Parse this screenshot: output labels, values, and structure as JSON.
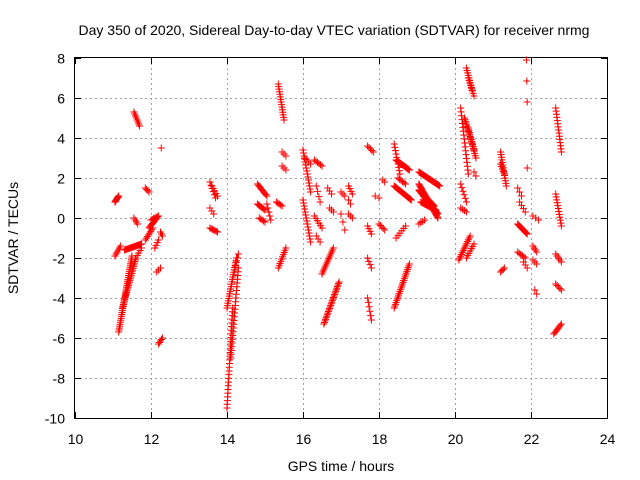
{
  "chart_data": {
    "type": "scatter",
    "title": "Day 350 of 2020, Sidereal Day-to-day VTEC variation (SDTVAR) for receiver nrmg",
    "xlabel": "GPS time / hours",
    "ylabel": "SDTVAR / TECUs",
    "xlim": [
      10,
      24
    ],
    "ylim": [
      -10,
      8
    ],
    "xticks": [
      10,
      12,
      14,
      16,
      18,
      20,
      22,
      24
    ],
    "yticks": [
      -10,
      -8,
      -6,
      -4,
      -2,
      0,
      2,
      4,
      6,
      8
    ],
    "xtick_labels": [
      "10",
      "12",
      "14",
      "16",
      "18",
      "20",
      "22",
      "24"
    ],
    "ytick_labels": [
      "-10",
      "-8",
      "-6",
      "-4",
      "-2",
      "0",
      "2",
      "4",
      "6",
      "8"
    ],
    "grid": true,
    "marker": "+",
    "marker_color": "#ff0000",
    "segments": [
      {
        "x0": 11.05,
        "x1": 11.15,
        "y0": 0.8,
        "y1": 1.1,
        "n": 8
      },
      {
        "x0": 11.05,
        "x1": 11.2,
        "y0": -1.9,
        "y1": -1.4,
        "n": 6
      },
      {
        "x0": 11.15,
        "x1": 11.5,
        "y0": -5.7,
        "y1": -1.9,
        "n": 40
      },
      {
        "x0": 11.25,
        "x1": 11.6,
        "y0": -4.5,
        "y1": -2.0,
        "n": 30
      },
      {
        "x0": 11.3,
        "x1": 11.75,
        "y0": -1.6,
        "y1": -1.3,
        "n": 18
      },
      {
        "x0": 11.55,
        "x1": 11.7,
        "y0": 5.3,
        "y1": 4.6,
        "n": 8
      },
      {
        "x0": 11.55,
        "x1": 11.65,
        "y0": 0.0,
        "y1": -0.3,
        "n": 4
      },
      {
        "x0": 11.6,
        "x1": 11.75,
        "y0": -2.0,
        "y1": -1.5,
        "n": 5
      },
      {
        "x0": 11.85,
        "x1": 11.95,
        "y0": 1.5,
        "y1": 1.3,
        "n": 4
      },
      {
        "x0": 11.85,
        "x1": 12.05,
        "y0": -1.1,
        "y1": -0.5,
        "n": 8
      },
      {
        "x0": 11.95,
        "x1": 12.15,
        "y0": -0.5,
        "y1": 0.0,
        "n": 10
      },
      {
        "x0": 12.0,
        "x1": 12.2,
        "y0": -0.1,
        "y1": 0.1,
        "n": 7
      },
      {
        "x0": 12.15,
        "x1": 12.25,
        "y0": -2.7,
        "y1": -2.5,
        "n": 3
      },
      {
        "x0": 12.1,
        "x1": 12.2,
        "y0": -1.5,
        "y1": -1.1,
        "n": 4
      },
      {
        "x0": 12.2,
        "x1": 12.3,
        "y0": -6.3,
        "y1": -6.0,
        "n": 5
      },
      {
        "x0": 12.25,
        "x1": 12.3,
        "y0": -0.7,
        "y1": -0.9,
        "n": 3
      },
      {
        "x0": 12.27,
        "x1": 12.27,
        "y0": 3.5,
        "y1": 3.5,
        "n": 1
      },
      {
        "x0": 13.55,
        "x1": 13.7,
        "y0": 1.8,
        "y1": 1.0,
        "n": 6
      },
      {
        "x0": 13.6,
        "x1": 13.75,
        "y0": 1.6,
        "y1": 1.1,
        "n": 5
      },
      {
        "x0": 13.55,
        "x1": 13.75,
        "y0": -0.5,
        "y1": -0.7,
        "n": 7
      },
      {
        "x0": 13.55,
        "x1": 13.65,
        "y0": 0.5,
        "y1": 0.2,
        "n": 3
      },
      {
        "x0": 14.0,
        "x1": 14.25,
        "y0": -4.5,
        "y1": -2.0,
        "n": 22
      },
      {
        "x0": 14.0,
        "x1": 14.15,
        "y0": -9.5,
        "y1": -4.5,
        "n": 28
      },
      {
        "x0": 14.1,
        "x1": 14.3,
        "y0": -7.0,
        "y1": -2.5,
        "n": 25
      },
      {
        "x0": 14.2,
        "x1": 14.3,
        "y0": -2.6,
        "y1": -1.8,
        "n": 5
      },
      {
        "x0": 14.8,
        "x1": 15.05,
        "y0": 1.7,
        "y1": 1.1,
        "n": 10
      },
      {
        "x0": 14.8,
        "x1": 15.0,
        "y0": 0.7,
        "y1": 0.4,
        "n": 8
      },
      {
        "x0": 14.85,
        "x1": 15.0,
        "y0": 0.0,
        "y1": -0.2,
        "n": 5
      },
      {
        "x0": 15.05,
        "x1": 15.15,
        "y0": 0.7,
        "y1": -0.1,
        "n": 5
      },
      {
        "x0": 15.35,
        "x1": 15.5,
        "y0": 6.7,
        "y1": 4.9,
        "n": 15
      },
      {
        "x0": 15.3,
        "x1": 15.45,
        "y0": 0.8,
        "y1": 0.6,
        "n": 5
      },
      {
        "x0": 15.35,
        "x1": 15.55,
        "y0": -2.5,
        "y1": -1.5,
        "n": 10
      },
      {
        "x0": 15.45,
        "x1": 15.55,
        "y0": 3.3,
        "y1": 3.1,
        "n": 3
      },
      {
        "x0": 15.45,
        "x1": 15.55,
        "y0": 2.6,
        "y1": 2.4,
        "n": 3
      },
      {
        "x0": 16.0,
        "x1": 16.2,
        "y0": 3.4,
        "y1": 1.3,
        "n": 15
      },
      {
        "x0": 16.0,
        "x1": 16.2,
        "y0": 0.9,
        "y1": -1.2,
        "n": 15
      },
      {
        "x0": 16.05,
        "x1": 16.2,
        "y0": 3.0,
        "y1": 2.7,
        "n": 4
      },
      {
        "x0": 16.3,
        "x1": 16.5,
        "y0": 2.9,
        "y1": 2.6,
        "n": 6
      },
      {
        "x0": 16.35,
        "x1": 16.45,
        "y0": 1.6,
        "y1": 0.8,
        "n": 4
      },
      {
        "x0": 16.3,
        "x1": 16.5,
        "y0": 0.1,
        "y1": -0.5,
        "n": 6
      },
      {
        "x0": 16.35,
        "x1": 16.45,
        "y0": -0.9,
        "y1": -1.2,
        "n": 3
      },
      {
        "x0": 16.5,
        "x1": 16.8,
        "y0": -2.8,
        "y1": -1.5,
        "n": 14
      },
      {
        "x0": 16.55,
        "x1": 16.95,
        "y0": -5.3,
        "y1": -3.2,
        "n": 28
      },
      {
        "x0": 16.65,
        "x1": 16.75,
        "y0": 1.5,
        "y1": 1.2,
        "n": 3
      },
      {
        "x0": 16.7,
        "x1": 16.8,
        "y0": 0.5,
        "y1": 0.3,
        "n": 3
      },
      {
        "x0": 17.0,
        "x1": 17.1,
        "y0": 0.2,
        "y1": -0.6,
        "n": 3
      },
      {
        "x0": 17.0,
        "x1": 17.1,
        "y0": 1.3,
        "y1": 1.1,
        "n": 3
      },
      {
        "x0": 17.2,
        "x1": 17.3,
        "y0": 1.6,
        "y1": 1.2,
        "n": 4
      },
      {
        "x0": 17.2,
        "x1": 17.3,
        "y0": 0.2,
        "y1": 0.0,
        "n": 3
      },
      {
        "x0": 17.2,
        "x1": 17.25,
        "y0": 0.9,
        "y1": 0.7,
        "n": 2
      },
      {
        "x0": 17.7,
        "x1": 17.85,
        "y0": 3.6,
        "y1": 3.3,
        "n": 5
      },
      {
        "x0": 17.7,
        "x1": 17.8,
        "y0": -0.4,
        "y1": -0.8,
        "n": 4
      },
      {
        "x0": 17.7,
        "x1": 17.8,
        "y0": -2.0,
        "y1": -2.5,
        "n": 4
      },
      {
        "x0": 17.7,
        "x1": 17.8,
        "y0": -4.0,
        "y1": -5.1,
        "n": 6
      },
      {
        "x0": 17.9,
        "x1": 18.0,
        "y0": 1.1,
        "y1": 1.0,
        "n": 2
      },
      {
        "x0": 18.0,
        "x1": 18.15,
        "y0": -0.3,
        "y1": -0.6,
        "n": 5
      },
      {
        "x0": 18.1,
        "x1": 18.15,
        "y0": 1.9,
        "y1": 1.8,
        "n": 2
      },
      {
        "x0": 18.4,
        "x1": 18.55,
        "y0": 3.7,
        "y1": 2.2,
        "n": 10
      },
      {
        "x0": 18.45,
        "x1": 18.8,
        "y0": 2.9,
        "y1": 2.4,
        "n": 18
      },
      {
        "x0": 18.4,
        "x1": 18.85,
        "y0": 1.6,
        "y1": 0.9,
        "n": 22
      },
      {
        "x0": 18.5,
        "x1": 18.7,
        "y0": 2.0,
        "y1": 1.7,
        "n": 6
      },
      {
        "x0": 18.4,
        "x1": 18.8,
        "y0": -4.5,
        "y1": -2.3,
        "n": 25
      },
      {
        "x0": 18.45,
        "x1": 18.7,
        "y0": -1.0,
        "y1": -0.4,
        "n": 6
      },
      {
        "x0": 19.05,
        "x1": 19.6,
        "y0": 2.3,
        "y1": 1.6,
        "n": 28
      },
      {
        "x0": 19.05,
        "x1": 19.55,
        "y0": 1.4,
        "y1": 0.2,
        "n": 34
      },
      {
        "x0": 19.05,
        "x1": 19.55,
        "y0": 1.7,
        "y1": 0.0,
        "n": 30
      },
      {
        "x0": 19.1,
        "x1": 19.5,
        "y0": 0.8,
        "y1": 0.4,
        "n": 20
      },
      {
        "x0": 19.2,
        "x1": 19.45,
        "y0": 1.1,
        "y1": 0.6,
        "n": 14
      },
      {
        "x0": 19.05,
        "x1": 19.2,
        "y0": -0.3,
        "y1": -0.1,
        "n": 4
      },
      {
        "x0": 20.15,
        "x1": 20.35,
        "y0": 5.5,
        "y1": 2.2,
        "n": 18
      },
      {
        "x0": 20.25,
        "x1": 20.5,
        "y0": 5.0,
        "y1": 3.4,
        "n": 20
      },
      {
        "x0": 20.3,
        "x1": 20.45,
        "y0": 7.5,
        "y1": 6.4,
        "n": 10
      },
      {
        "x0": 20.35,
        "x1": 20.5,
        "y0": 7.0,
        "y1": 6.1,
        "n": 8
      },
      {
        "x0": 20.35,
        "x1": 20.55,
        "y0": 4.5,
        "y1": 3.0,
        "n": 14
      },
      {
        "x0": 20.15,
        "x1": 20.3,
        "y0": 1.7,
        "y1": 0.8,
        "n": 6
      },
      {
        "x0": 20.15,
        "x1": 20.3,
        "y0": 0.5,
        "y1": 0.3,
        "n": 4
      },
      {
        "x0": 20.1,
        "x1": 20.4,
        "y0": -2.1,
        "y1": -0.9,
        "n": 14
      },
      {
        "x0": 20.3,
        "x1": 20.5,
        "y0": -2.0,
        "y1": -1.3,
        "n": 7
      },
      {
        "x0": 20.5,
        "x1": 20.55,
        "y0": 2.3,
        "y1": 2.1,
        "n": 2
      },
      {
        "x0": 21.2,
        "x1": 21.35,
        "y0": 3.3,
        "y1": 1.6,
        "n": 14
      },
      {
        "x0": 21.2,
        "x1": 21.3,
        "y0": 2.7,
        "y1": 2.2,
        "n": 5
      },
      {
        "x0": 21.2,
        "x1": 21.3,
        "y0": -2.7,
        "y1": -2.5,
        "n": 4
      },
      {
        "x0": 21.65,
        "x1": 21.75,
        "y0": 1.5,
        "y1": 1.1,
        "n": 3
      },
      {
        "x0": 21.65,
        "x1": 21.9,
        "y0": -0.3,
        "y1": -0.8,
        "n": 12
      },
      {
        "x0": 21.65,
        "x1": 21.85,
        "y0": -1.7,
        "y1": -2.0,
        "n": 6
      },
      {
        "x0": 21.7,
        "x1": 21.85,
        "y0": 0.8,
        "y1": 0.3,
        "n": 4
      },
      {
        "x0": 21.8,
        "x1": 21.9,
        "y0": -2.2,
        "y1": -2.5,
        "n": 3
      },
      {
        "x0": 21.88,
        "x1": 21.9,
        "y0": 7.9,
        "y1": 5.8,
        "n": 3
      },
      {
        "x0": 21.9,
        "x1": 21.92,
        "y0": 2.5,
        "y1": 2.5,
        "n": 1
      },
      {
        "x0": 22.05,
        "x1": 22.2,
        "y0": 0.1,
        "y1": -0.1,
        "n": 3
      },
      {
        "x0": 22.05,
        "x1": 22.15,
        "y0": -1.4,
        "y1": -1.7,
        "n": 4
      },
      {
        "x0": 22.05,
        "x1": 22.15,
        "y0": -2.1,
        "y1": -2.3,
        "n": 3
      },
      {
        "x0": 22.1,
        "x1": 22.15,
        "y0": -3.6,
        "y1": -3.8,
        "n": 2
      },
      {
        "x0": 22.65,
        "x1": 22.8,
        "y0": 5.5,
        "y1": 3.3,
        "n": 15
      },
      {
        "x0": 22.65,
        "x1": 22.8,
        "y0": 1.2,
        "y1": -0.4,
        "n": 12
      },
      {
        "x0": 22.65,
        "x1": 22.8,
        "y0": -1.8,
        "y1": -2.2,
        "n": 5
      },
      {
        "x0": 22.65,
        "x1": 22.8,
        "y0": -3.3,
        "y1": -3.6,
        "n": 5
      },
      {
        "x0": 22.6,
        "x1": 22.8,
        "y0": -5.8,
        "y1": -5.3,
        "n": 8
      }
    ]
  }
}
